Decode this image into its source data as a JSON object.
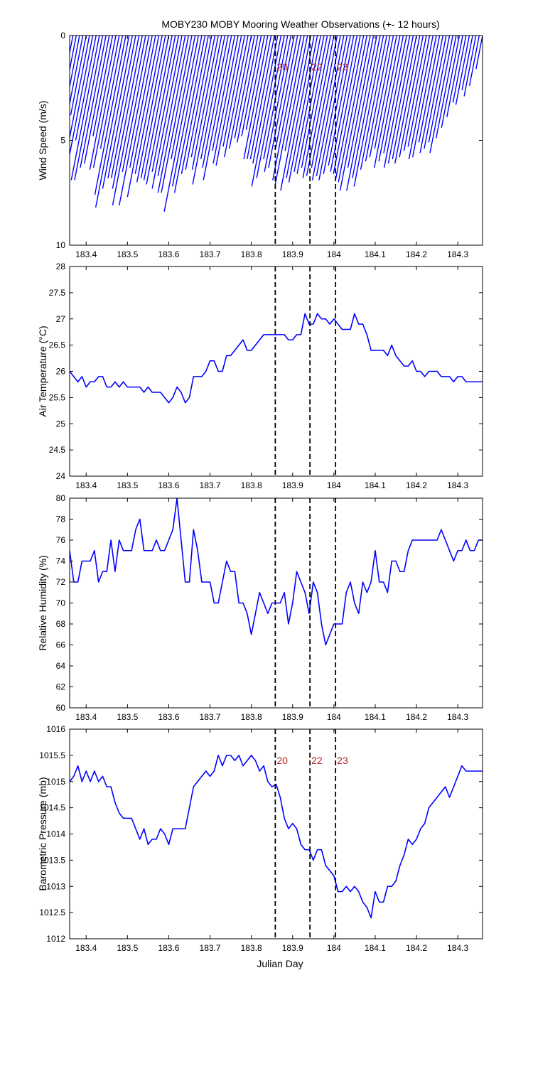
{
  "figure": {
    "title": "MOBY230 MOBY Mooring Weather Observations (+- 12 hours)",
    "xlabel": "Julian Day",
    "colors": {
      "series": "#0000ff",
      "marker_line": "#000000",
      "marker_label": "#b22222"
    }
  },
  "chart_data": [
    {
      "type": "line",
      "name": "wind",
      "ylabel": "Wind Speed (m/s)",
      "xlim": [
        183.36,
        184.36
      ],
      "ylim": [
        0,
        10
      ],
      "y_inverted": true,
      "x_ticks": [
        183.4,
        183.5,
        183.6,
        183.7,
        183.8,
        183.9,
        184,
        184.1,
        184.2,
        184.3
      ],
      "y_ticks": [
        0,
        5,
        10
      ],
      "grid": false,
      "vlines": [
        {
          "x": 183.858,
          "label": "20"
        },
        {
          "x": 183.942,
          "label": "22"
        },
        {
          "x": 184.004,
          "label": "23"
        }
      ],
      "x": [
        183.36,
        183.368,
        183.376,
        183.384,
        183.392,
        183.4,
        183.408,
        183.416,
        183.424,
        183.432,
        183.44,
        183.448,
        183.456,
        183.464,
        183.472,
        183.48,
        183.488,
        183.496,
        183.504,
        183.512,
        183.52,
        183.528,
        183.536,
        183.544,
        183.552,
        183.56,
        183.568,
        183.576,
        183.584,
        183.592,
        183.6,
        183.608,
        183.616,
        183.624,
        183.632,
        183.64,
        183.648,
        183.656,
        183.664,
        183.672,
        183.68,
        183.688,
        183.696,
        183.704,
        183.712,
        183.72,
        183.728,
        183.736,
        183.744,
        183.752,
        183.76,
        183.768,
        183.776,
        183.784,
        183.792,
        183.8,
        183.808,
        183.816,
        183.824,
        183.832,
        183.84,
        183.848,
        183.856,
        183.864,
        183.872,
        183.88,
        183.888,
        183.896,
        183.904,
        183.912,
        183.92,
        183.928,
        183.936,
        183.944,
        183.952,
        183.96,
        183.968,
        183.976,
        183.984,
        183.992,
        184,
        184.008,
        184.016,
        184.024,
        184.032,
        184.04,
        184.048,
        184.056,
        184.064,
        184.072,
        184.08,
        184.088,
        184.096,
        184.104,
        184.112,
        184.12,
        184.128,
        184.136,
        184.144,
        184.152,
        184.16,
        184.168,
        184.176,
        184.184,
        184.192,
        184.2,
        184.208,
        184.216,
        184.224,
        184.232,
        184.24,
        184.248,
        184.256,
        184.264,
        184.272,
        184.28,
        184.288,
        184.296,
        184.304,
        184.312,
        184.32,
        184.328,
        184.336,
        184.344,
        184.352,
        184.36
      ],
      "values": [
        4.2,
        5.9,
        4.1,
        5.1,
        4.6,
        3.8,
        5.8,
        5.8,
        5.0,
        6.9,
        6.9,
        6.3,
        6.1,
        4.8,
        6.4,
        6.3,
        5.4,
        7.6,
        8.2,
        7.3,
        6.8,
        6.8,
        7.3,
        8.1,
        6.5,
        8.1,
        6.3,
        7.7,
        6.6,
        7.0,
        6.8,
        6.9,
        7.1,
        6.5,
        7.3,
        6.7,
        7.5,
        7.5,
        5.9,
        8.4,
        7.2,
        7.5,
        6.6,
        6.4,
        5.8,
        6.4,
        7.1,
        5.9,
        6.3,
        6.9,
        5.5,
        6.1,
        6.2,
        5.3,
        5.8,
        5.4,
        4.9,
        5.1,
        4.8,
        4.5,
        5.9,
        5.9,
        5.9,
        6.1,
        7.2,
        6.8,
        5.9,
        6.5,
        6.3,
        5.4,
        6.9,
        7.1,
        5.5,
        7.4,
        6.8,
        7.0,
        6.5,
        6.6,
        6.3,
        6.8,
        6.7,
        6.3,
        6.9,
        6.7,
        6.9,
        6.6,
        6.2,
        6.5,
        6.6,
        6.9,
        7.0,
        7.4,
        6.3,
        7.4,
        6.8,
        7.2,
        6.4,
        6.0,
        5.8,
        5.4,
        6.3,
        6.0,
        5.6,
        6.3,
        6.1,
        5.9,
        6.1,
        5.8,
        5.5,
        5.3,
        5.9,
        5.8,
        5.1,
        5.6,
        5.4,
        5.1,
        5.6,
        4.9,
        4.4,
        3.9,
        3.2,
        3.3,
        2.6,
        2.9,
        2.4,
        1.6
      ],
      "wind_angle_deg": 11
    },
    {
      "type": "line",
      "name": "air_temperature",
      "ylabel": "Air Temperature (°C)",
      "xlim": [
        183.36,
        184.36
      ],
      "ylim": [
        24,
        28
      ],
      "x_ticks": [
        183.4,
        183.5,
        183.6,
        183.7,
        183.8,
        183.9,
        184,
        184.1,
        184.2,
        184.3
      ],
      "y_ticks": [
        24,
        24.5,
        25,
        25.5,
        26,
        26.5,
        27,
        27.5,
        28
      ],
      "grid": false,
      "vlines": [
        {
          "x": 183.858,
          "label": ""
        },
        {
          "x": 183.942,
          "label": ""
        },
        {
          "x": 184.004,
          "label": ""
        }
      ],
      "x": [
        183.36,
        183.37,
        183.38,
        183.39,
        183.4,
        183.41,
        183.42,
        183.43,
        183.44,
        183.45,
        183.46,
        183.47,
        183.48,
        183.49,
        183.5,
        183.51,
        183.52,
        183.53,
        183.54,
        183.55,
        183.56,
        183.57,
        183.58,
        183.59,
        183.6,
        183.61,
        183.62,
        183.63,
        183.64,
        183.65,
        183.66,
        183.67,
        183.68,
        183.69,
        183.7,
        183.71,
        183.72,
        183.73,
        183.74,
        183.75,
        183.76,
        183.77,
        183.78,
        183.79,
        183.8,
        183.81,
        183.82,
        183.83,
        183.84,
        183.85,
        183.86,
        183.87,
        183.88,
        183.89,
        183.9,
        183.91,
        183.92,
        183.93,
        183.94,
        183.95,
        183.96,
        183.97,
        183.98,
        183.99,
        184,
        184.01,
        184.02,
        184.03,
        184.04,
        184.05,
        184.06,
        184.07,
        184.08,
        184.09,
        184.1,
        184.11,
        184.12,
        184.13,
        184.14,
        184.15,
        184.16,
        184.17,
        184.18,
        184.19,
        184.2,
        184.21,
        184.22,
        184.23,
        184.24,
        184.25,
        184.26,
        184.27,
        184.28,
        184.29,
        184.3,
        184.31,
        184.32,
        184.33,
        184.34,
        184.35,
        184.36
      ],
      "values": [
        26.0,
        25.9,
        25.8,
        25.9,
        25.7,
        25.8,
        25.8,
        25.9,
        25.9,
        25.7,
        25.7,
        25.8,
        25.7,
        25.8,
        25.7,
        25.7,
        25.7,
        25.7,
        25.6,
        25.7,
        25.6,
        25.6,
        25.6,
        25.5,
        25.4,
        25.5,
        25.7,
        25.6,
        25.4,
        25.5,
        25.9,
        25.9,
        25.9,
        26.0,
        26.2,
        26.2,
        26.0,
        26.0,
        26.3,
        26.3,
        26.4,
        26.5,
        26.6,
        26.4,
        26.4,
        26.5,
        26.6,
        26.7,
        26.7,
        26.7,
        26.7,
        26.7,
        26.7,
        26.6,
        26.6,
        26.7,
        26.7,
        27.1,
        26.9,
        26.9,
        27.1,
        27.0,
        27.0,
        26.9,
        27.0,
        26.9,
        26.8,
        26.8,
        26.8,
        27.1,
        26.9,
        26.9,
        26.7,
        26.4,
        26.4,
        26.4,
        26.4,
        26.3,
        26.5,
        26.3,
        26.2,
        26.1,
        26.1,
        26.2,
        26.0,
        26.0,
        25.9,
        26.0,
        26.0,
        26.0,
        25.9,
        25.9,
        25.9,
        25.8,
        25.9,
        25.9,
        25.8,
        25.8,
        25.8,
        25.8,
        25.8
      ]
    },
    {
      "type": "line",
      "name": "relative_humidity",
      "ylabel": "Relative Humidity (%)",
      "xlim": [
        183.36,
        184.36
      ],
      "ylim": [
        60,
        80
      ],
      "x_ticks": [
        183.4,
        183.5,
        183.6,
        183.7,
        183.8,
        183.9,
        184,
        184.1,
        184.2,
        184.3
      ],
      "y_ticks": [
        60,
        62,
        64,
        66,
        68,
        70,
        72,
        74,
        76,
        78,
        80
      ],
      "grid": false,
      "vlines": [
        {
          "x": 183.858,
          "label": ""
        },
        {
          "x": 183.942,
          "label": ""
        },
        {
          "x": 184.004,
          "label": ""
        }
      ],
      "x": [
        183.36,
        183.37,
        183.38,
        183.39,
        183.4,
        183.41,
        183.42,
        183.43,
        183.44,
        183.45,
        183.46,
        183.47,
        183.48,
        183.49,
        183.5,
        183.51,
        183.52,
        183.53,
        183.54,
        183.55,
        183.56,
        183.57,
        183.58,
        183.59,
        183.6,
        183.61,
        183.62,
        183.63,
        183.64,
        183.65,
        183.66,
        183.67,
        183.68,
        183.69,
        183.7,
        183.71,
        183.72,
        183.73,
        183.74,
        183.75,
        183.76,
        183.77,
        183.78,
        183.79,
        183.8,
        183.81,
        183.82,
        183.83,
        183.84,
        183.85,
        183.86,
        183.87,
        183.88,
        183.89,
        183.9,
        183.91,
        183.92,
        183.93,
        183.94,
        183.95,
        183.96,
        183.97,
        183.98,
        183.99,
        184,
        184.01,
        184.02,
        184.03,
        184.04,
        184.05,
        184.06,
        184.07,
        184.08,
        184.09,
        184.1,
        184.11,
        184.12,
        184.13,
        184.14,
        184.15,
        184.16,
        184.17,
        184.18,
        184.19,
        184.2,
        184.21,
        184.22,
        184.23,
        184.24,
        184.25,
        184.26,
        184.27,
        184.28,
        184.29,
        184.3,
        184.31,
        184.32,
        184.33,
        184.34,
        184.35,
        184.36
      ],
      "values": [
        75,
        72,
        72,
        74,
        74,
        74,
        75,
        72,
        73,
        73,
        76,
        73,
        76,
        75,
        75,
        75,
        77,
        78,
        75,
        75,
        75,
        76,
        75,
        75,
        76,
        77,
        80,
        76,
        72,
        72,
        77,
        75,
        72,
        72,
        72,
        70,
        70,
        72,
        74,
        73,
        73,
        70,
        70,
        69,
        67,
        69,
        71,
        70,
        69,
        70,
        70,
        70,
        71,
        68,
        70,
        73,
        72,
        71,
        69,
        72,
        71,
        68,
        66,
        67,
        68,
        68,
        68,
        71,
        72,
        70,
        69,
        72,
        71,
        72,
        75,
        72,
        72,
        71,
        74,
        74,
        73,
        73,
        75,
        76,
        76,
        76,
        76,
        76,
        76,
        76,
        77,
        76,
        75,
        74,
        75,
        75,
        76,
        75,
        75,
        76,
        76
      ]
    },
    {
      "type": "line",
      "name": "barometric_pressure",
      "ylabel": "Barometric Pressure (mb)",
      "xlim": [
        183.36,
        184.36
      ],
      "ylim": [
        1012,
        1016
      ],
      "x_ticks": [
        183.4,
        183.5,
        183.6,
        183.7,
        183.8,
        183.9,
        184,
        184.1,
        184.2,
        184.3
      ],
      "y_ticks": [
        1012,
        1012.5,
        1013,
        1013.5,
        1014,
        1014.5,
        1015,
        1015.5,
        1016
      ],
      "grid": false,
      "vlines": [
        {
          "x": 183.858,
          "label": "20"
        },
        {
          "x": 183.942,
          "label": "22"
        },
        {
          "x": 184.004,
          "label": "23"
        }
      ],
      "x": [
        183.36,
        183.37,
        183.38,
        183.39,
        183.4,
        183.41,
        183.42,
        183.43,
        183.44,
        183.45,
        183.46,
        183.47,
        183.48,
        183.49,
        183.5,
        183.51,
        183.52,
        183.53,
        183.54,
        183.55,
        183.56,
        183.57,
        183.58,
        183.59,
        183.6,
        183.61,
        183.62,
        183.63,
        183.64,
        183.65,
        183.66,
        183.67,
        183.68,
        183.69,
        183.7,
        183.71,
        183.72,
        183.73,
        183.74,
        183.75,
        183.76,
        183.77,
        183.78,
        183.79,
        183.8,
        183.81,
        183.82,
        183.83,
        183.84,
        183.85,
        183.86,
        183.87,
        183.88,
        183.89,
        183.9,
        183.91,
        183.92,
        183.93,
        183.94,
        183.95,
        183.96,
        183.97,
        183.98,
        183.99,
        184,
        184.01,
        184.02,
        184.03,
        184.04,
        184.05,
        184.06,
        184.07,
        184.08,
        184.09,
        184.1,
        184.11,
        184.12,
        184.13,
        184.14,
        184.15,
        184.16,
        184.17,
        184.18,
        184.19,
        184.2,
        184.21,
        184.22,
        184.23,
        184.24,
        184.25,
        184.26,
        184.27,
        184.28,
        184.29,
        184.3,
        184.31,
        184.32,
        184.33,
        184.34,
        184.35,
        184.36
      ],
      "values": [
        1015.0,
        1015.1,
        1015.3,
        1015.0,
        1015.2,
        1015.0,
        1015.2,
        1015.0,
        1015.1,
        1014.9,
        1014.9,
        1014.6,
        1014.4,
        1014.3,
        1014.3,
        1014.3,
        1014.1,
        1013.9,
        1014.1,
        1013.8,
        1013.9,
        1013.9,
        1014.1,
        1014.0,
        1013.8,
        1014.1,
        1014.1,
        1014.1,
        1014.1,
        1014.5,
        1014.9,
        1015.0,
        1015.1,
        1015.2,
        1015.1,
        1015.2,
        1015.5,
        1015.3,
        1015.5,
        1015.5,
        1015.4,
        1015.5,
        1015.3,
        1015.4,
        1015.5,
        1015.4,
        1015.2,
        1015.3,
        1015.0,
        1014.9,
        1014.95,
        1014.7,
        1014.3,
        1014.1,
        1014.2,
        1014.1,
        1013.8,
        1013.7,
        1013.7,
        1013.5,
        1013.7,
        1013.7,
        1013.4,
        1013.3,
        1013.2,
        1012.9,
        1012.9,
        1013.0,
        1012.9,
        1013.0,
        1012.9,
        1012.7,
        1012.6,
        1012.4,
        1012.9,
        1012.7,
        1012.7,
        1013.0,
        1013.0,
        1013.1,
        1013.4,
        1013.6,
        1013.9,
        1013.8,
        1013.9,
        1014.1,
        1014.2,
        1014.5,
        1014.6,
        1014.7,
        1014.8,
        1014.9,
        1014.7,
        1014.9,
        1015.1,
        1015.3,
        1015.2,
        1015.2,
        1015.2,
        1015.2,
        1015.2
      ]
    }
  ]
}
